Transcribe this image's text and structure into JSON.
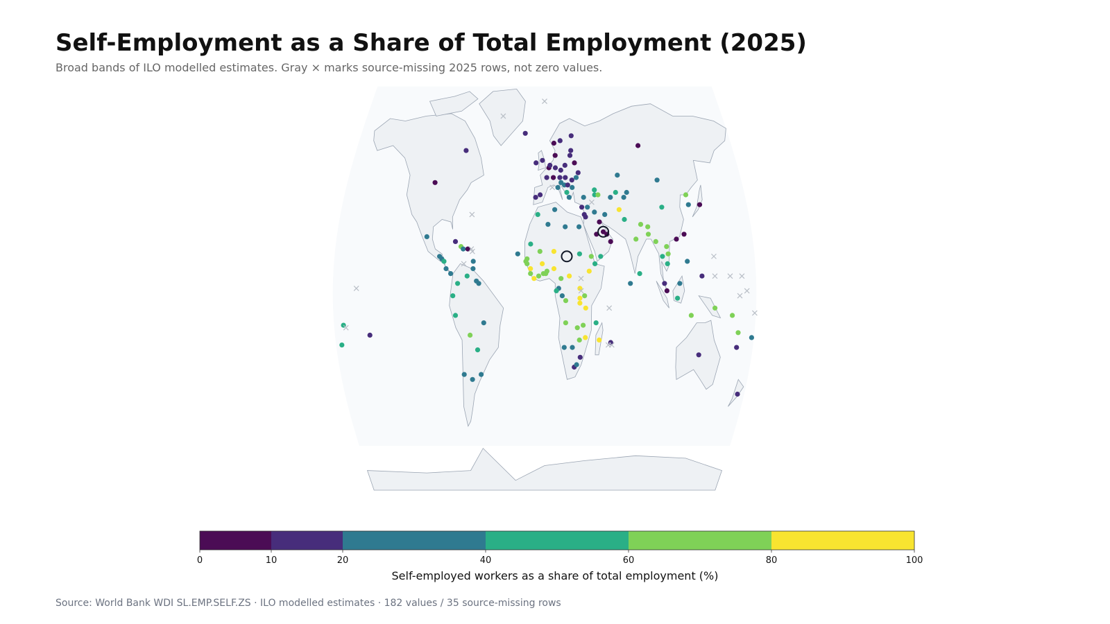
{
  "header": {
    "title": "Self-Employment as a Share of Total Employment (2025)",
    "subtitle": "Broad bands of ILO modelled estimates. Gray × marks source-missing 2025 rows, not zero values."
  },
  "footer": {
    "source": "Source: World Bank WDI SL.EMP.SELF.ZS · ILO modelled estimates · 182 values / 35 source-missing rows"
  },
  "colors": {
    "ocean": "#f8fafc",
    "land": "#eef1f4",
    "coast": "#9aa4b2",
    "missing": "#b8bec6",
    "bins": [
      "#4b0c55",
      "#472d7b",
      "#2f7a90",
      "#2aaf86",
      "#7fd157",
      "#f8e430"
    ]
  },
  "chart_data": {
    "type": "choropleth-points",
    "projection": "robinson",
    "legend": {
      "title": "Self-employed workers as a share of total employment (%)",
      "bins": [
        0,
        10,
        20,
        40,
        60,
        80,
        100
      ],
      "tick_labels": [
        "0",
        "10",
        "20",
        "40",
        "60",
        "80",
        "100"
      ],
      "placement": "bottom"
    },
    "points": [
      {
        "lon": -100,
        "lat": 45,
        "v": 5
      },
      {
        "lon": -75,
        "lat": 58,
        "v": 15
      },
      {
        "lon": -90,
        "lat": 15,
        "v": 35
      },
      {
        "lon": -88,
        "lat": 14,
        "v": 30
      },
      {
        "lon": -86,
        "lat": 13,
        "v": 40
      },
      {
        "lon": -84,
        "lat": 10,
        "v": 30
      },
      {
        "lon": -80,
        "lat": 8,
        "v": 30
      },
      {
        "lon": -102,
        "lat": 23,
        "v": 30
      },
      {
        "lon": -77,
        "lat": 21,
        "v": 15
      },
      {
        "lon": -72,
        "lat": 19,
        "v": 60
      },
      {
        "lon": -70,
        "lat": 18,
        "v": 35
      },
      {
        "lon": -66,
        "lat": 18,
        "v": 5
      },
      {
        "lon": -61,
        "lat": 13,
        "v": 30
      },
      {
        "lon": -61,
        "lat": 10,
        "v": 30
      },
      {
        "lon": -74,
        "lat": 4,
        "v": 40
      },
      {
        "lon": -66,
        "lat": 7,
        "v": 40
      },
      {
        "lon": -58,
        "lat": 5,
        "v": 30
      },
      {
        "lon": -56,
        "lat": 4,
        "v": 30
      },
      {
        "lon": -78,
        "lat": -1,
        "v": 40
      },
      {
        "lon": -76,
        "lat": -9,
        "v": 40
      },
      {
        "lon": -64,
        "lat": -17,
        "v": 60
      },
      {
        "lon": -58,
        "lat": -23,
        "v": 40
      },
      {
        "lon": -52,
        "lat": -12,
        "v": 30
      },
      {
        "lon": -71,
        "lat": -33,
        "v": 30
      },
      {
        "lon": -64,
        "lat": -35,
        "v": 30
      },
      {
        "lon": -56,
        "lat": -33,
        "v": 30
      },
      {
        "lon": -172,
        "lat": -13,
        "v": 45
      },
      {
        "lon": -175,
        "lat": -21,
        "v": 45
      },
      {
        "lon": -150,
        "lat": -17,
        "v": 15
      },
      {
        "lon": -19,
        "lat": 65,
        "v": 15
      },
      {
        "lon": -8,
        "lat": 53,
        "v": 15
      },
      {
        "lon": -2,
        "lat": 54,
        "v": 15
      },
      {
        "lon": 2,
        "lat": 47,
        "v": 15
      },
      {
        "lon": -4,
        "lat": 40,
        "v": 15
      },
      {
        "lon": -8,
        "lat": 39,
        "v": 15
      },
      {
        "lon": 4,
        "lat": 51,
        "v": 5
      },
      {
        "lon": 5,
        "lat": 52,
        "v": 15
      },
      {
        "lon": 10,
        "lat": 51,
        "v": 15
      },
      {
        "lon": 8,
        "lat": 47,
        "v": 5
      },
      {
        "lon": 12,
        "lat": 43,
        "v": 30
      },
      {
        "lon": 10,
        "lat": 56,
        "v": 5
      },
      {
        "lon": 9,
        "lat": 61,
        "v": 5
      },
      {
        "lon": 15,
        "lat": 62,
        "v": 15
      },
      {
        "lon": 26,
        "lat": 64,
        "v": 15
      },
      {
        "lon": 19,
        "lat": 52,
        "v": 15
      },
      {
        "lon": 15,
        "lat": 50,
        "v": 15
      },
      {
        "lon": 14,
        "lat": 47,
        "v": 15
      },
      {
        "lon": 19,
        "lat": 47,
        "v": 15
      },
      {
        "lon": 15,
        "lat": 45,
        "v": 30
      },
      {
        "lon": 18,
        "lat": 44,
        "v": 30
      },
      {
        "lon": 21,
        "lat": 44,
        "v": 15
      },
      {
        "lon": 25,
        "lat": 46,
        "v": 15
      },
      {
        "lon": 25,
        "lat": 43,
        "v": 30
      },
      {
        "lon": 22,
        "lat": 39,
        "v": 30
      },
      {
        "lon": 20,
        "lat": 41,
        "v": 40
      },
      {
        "lon": 24,
        "lat": 56,
        "v": 15
      },
      {
        "lon": 25,
        "lat": 58,
        "v": 15
      },
      {
        "lon": 28,
        "lat": 53,
        "v": 5
      },
      {
        "lon": 31,
        "lat": 49,
        "v": 15
      },
      {
        "lon": 29,
        "lat": 47,
        "v": 35
      },
      {
        "lon": 35,
        "lat": 39,
        "v": 30
      },
      {
        "lon": 33,
        "lat": 35,
        "v": 15
      },
      {
        "lon": 45,
        "lat": 42,
        "v": 40
      },
      {
        "lon": 45,
        "lat": 40,
        "v": 40
      },
      {
        "lon": 48,
        "lat": 40,
        "v": 60
      },
      {
        "lon": 90,
        "lat": 60,
        "v": 5
      },
      {
        "lon": 67,
        "lat": 48,
        "v": 30
      },
      {
        "lon": 59,
        "lat": 39,
        "v": 30
      },
      {
        "lon": 64,
        "lat": 41,
        "v": 45
      },
      {
        "lon": 74,
        "lat": 41,
        "v": 30
      },
      {
        "lon": 71,
        "lat": 39,
        "v": 30
      },
      {
        "lon": 66,
        "lat": 34,
        "v": 85
      },
      {
        "lon": 53,
        "lat": 32,
        "v": 30
      },
      {
        "lon": 44,
        "lat": 33,
        "v": 30
      },
      {
        "lon": 38,
        "lat": 35,
        "v": 30
      },
      {
        "lon": 36,
        "lat": 31,
        "v": 15
      },
      {
        "lon": 35,
        "lat": 32,
        "v": 15
      },
      {
        "lon": 45,
        "lat": 24,
        "v": 5
      },
      {
        "lon": 51,
        "lat": 25,
        "v": 5
      },
      {
        "lon": 54,
        "lat": 24,
        "v": 5
      },
      {
        "lon": 57,
        "lat": 21,
        "v": 5
      },
      {
        "lon": 48,
        "lat": 29,
        "v": 5
      },
      {
        "lon": 48,
        "lat": 15,
        "v": 40
      },
      {
        "lon": 70,
        "lat": 30,
        "v": 45
      },
      {
        "lon": 79,
        "lat": 22,
        "v": 70
      },
      {
        "lon": 84,
        "lat": 28,
        "v": 70
      },
      {
        "lon": 90,
        "lat": 27,
        "v": 65
      },
      {
        "lon": 90,
        "lat": 24,
        "v": 70
      },
      {
        "lon": 96,
        "lat": 21,
        "v": 65
      },
      {
        "lon": 81,
        "lat": 8,
        "v": 40
      },
      {
        "lon": 73,
        "lat": 4,
        "v": 30
      },
      {
        "lon": 101,
        "lat": 15,
        "v": 45
      },
      {
        "lon": 105,
        "lat": 19,
        "v": 70
      },
      {
        "lon": 105,
        "lat": 12,
        "v": 45
      },
      {
        "lon": 106,
        "lat": 16,
        "v": 70
      },
      {
        "lon": 102,
        "lat": 4,
        "v": 15
      },
      {
        "lon": 104,
        "lat": 1,
        "v": 5
      },
      {
        "lon": 115,
        "lat": 4,
        "v": 30
      },
      {
        "lon": 114,
        "lat": 22,
        "v": 5
      },
      {
        "lon": 121,
        "lat": 24,
        "v": 5
      },
      {
        "lon": 122,
        "lat": 13,
        "v": 30
      },
      {
        "lon": 104,
        "lat": 35,
        "v": 45
      },
      {
        "lon": 103,
        "lat": 46,
        "v": 30
      },
      {
        "lon": 127,
        "lat": 40,
        "v": 70
      },
      {
        "lon": 128,
        "lat": 36,
        "v": 30
      },
      {
        "lon": 138,
        "lat": 36,
        "v": 5
      },
      {
        "lon": 134,
        "lat": 7,
        "v": 15
      },
      {
        "lon": 113,
        "lat": -2,
        "v": 45
      },
      {
        "lon": 125,
        "lat": -9,
        "v": 70
      },
      {
        "lon": 145,
        "lat": -6,
        "v": 70
      },
      {
        "lon": 160,
        "lat": -9,
        "v": 70
      },
      {
        "lon": 134,
        "lat": -25,
        "v": 15
      },
      {
        "lon": 174,
        "lat": -41,
        "v": 15
      },
      {
        "lon": 166,
        "lat": -22,
        "v": 15
      },
      {
        "lon": 166,
        "lat": -16,
        "v": 70
      },
      {
        "lon": 178,
        "lat": -18,
        "v": 30
      },
      {
        "lon": -23,
        "lat": 16,
        "v": 30
      },
      {
        "lon": -12,
        "lat": 20,
        "v": 45
      },
      {
        "lon": -15,
        "lat": 14,
        "v": 65
      },
      {
        "lon": -16,
        "lat": 13,
        "v": 70
      },
      {
        "lon": -15,
        "lat": 12,
        "v": 70
      },
      {
        "lon": -12,
        "lat": 10,
        "v": 90
      },
      {
        "lon": -12,
        "lat": 8,
        "v": 70
      },
      {
        "lon": -9,
        "lat": 6,
        "v": 85
      },
      {
        "lon": -5,
        "lat": 7,
        "v": 70
      },
      {
        "lon": -1,
        "lat": 8,
        "v": 70
      },
      {
        "lon": 1,
        "lat": 8,
        "v": 70
      },
      {
        "lon": 2,
        "lat": 9,
        "v": 70
      },
      {
        "lon": -4,
        "lat": 17,
        "v": 70
      },
      {
        "lon": -2,
        "lat": 12,
        "v": 90
      },
      {
        "lon": 8,
        "lat": 17,
        "v": 90
      },
      {
        "lon": 8,
        "lat": 10,
        "v": 85
      },
      {
        "lon": 14,
        "lat": 6,
        "v": 70
      },
      {
        "lon": 12,
        "lat": 2,
        "v": 30
      },
      {
        "lon": 10,
        "lat": 1,
        "v": 40
      },
      {
        "lon": 15,
        "lat": -1,
        "v": 30
      },
      {
        "lon": 18,
        "lat": -3,
        "v": 70
      },
      {
        "lon": 21,
        "lat": 7,
        "v": 90
      },
      {
        "lon": 30,
        "lat": 2,
        "v": 85
      },
      {
        "lon": 30,
        "lat": -2,
        "v": 90
      },
      {
        "lon": 34,
        "lat": -1,
        "v": 70
      },
      {
        "lon": 38,
        "lat": 9,
        "v": 90
      },
      {
        "lon": 40,
        "lat": 15,
        "v": 70
      },
      {
        "lon": 43,
        "lat": 12,
        "v": 40
      },
      {
        "lon": 30,
        "lat": 16,
        "v": 40
      },
      {
        "lon": 30,
        "lat": 27,
        "v": 30
      },
      {
        "lon": 18,
        "lat": 27,
        "v": 30
      },
      {
        "lon": 9,
        "lat": 34,
        "v": 30
      },
      {
        "lon": 3,
        "lat": 28,
        "v": 30
      },
      {
        "lon": -6,
        "lat": 32,
        "v": 45
      },
      {
        "lon": 35,
        "lat": -6,
        "v": 85
      },
      {
        "lon": 30,
        "lat": -4,
        "v": 90
      },
      {
        "lon": 33,
        "lat": -13,
        "v": 70
      },
      {
        "lon": 35,
        "lat": -18,
        "v": 90
      },
      {
        "lon": 28,
        "lat": -14,
        "v": 70
      },
      {
        "lon": 30,
        "lat": -19,
        "v": 70
      },
      {
        "lon": 18,
        "lat": -12,
        "v": 70
      },
      {
        "lon": 17,
        "lat": -22,
        "v": 30
      },
      {
        "lon": 24,
        "lat": -22,
        "v": 30
      },
      {
        "lon": 26,
        "lat": -30,
        "v": 15
      },
      {
        "lon": 28,
        "lat": -29,
        "v": 30
      },
      {
        "lon": 31,
        "lat": -26,
        "v": 15
      },
      {
        "lon": 47,
        "lat": -19,
        "v": 85
      },
      {
        "lon": 57,
        "lat": -20,
        "v": 15
      },
      {
        "lon": 44,
        "lat": -12,
        "v": 40
      }
    ],
    "missing": [
      {
        "lon": -42,
        "lat": 72
      },
      {
        "lon": -64,
        "lat": 32
      },
      {
        "lon": -62,
        "lat": 17
      },
      {
        "lon": -63,
        "lat": 18
      },
      {
        "lon": -69,
        "lat": 12
      },
      {
        "lon": -160,
        "lat": 2
      },
      {
        "lon": -170,
        "lat": -14
      },
      {
        "lon": 0,
        "lat": 78
      },
      {
        "lon": 42,
        "lat": 37
      },
      {
        "lon": 7,
        "lat": 43
      },
      {
        "lon": 31,
        "lat": 6
      },
      {
        "lon": 31,
        "lat": 1
      },
      {
        "lon": 55,
        "lat": -6
      },
      {
        "lon": 58,
        "lat": -21
      },
      {
        "lon": 55,
        "lat": -21
      },
      {
        "lon": 145,
        "lat": 15
      },
      {
        "lon": 145,
        "lat": 7
      },
      {
        "lon": 158,
        "lat": 7
      },
      {
        "lon": 168,
        "lat": 7
      },
      {
        "lon": 166,
        "lat": -1
      },
      {
        "lon": 179,
        "lat": -8
      },
      {
        "lon": 172,
        "lat": 1
      }
    ],
    "highlights": [
      {
        "lon": 51,
        "lat": 25
      },
      {
        "lon": 19,
        "lat": 15
      }
    ]
  }
}
